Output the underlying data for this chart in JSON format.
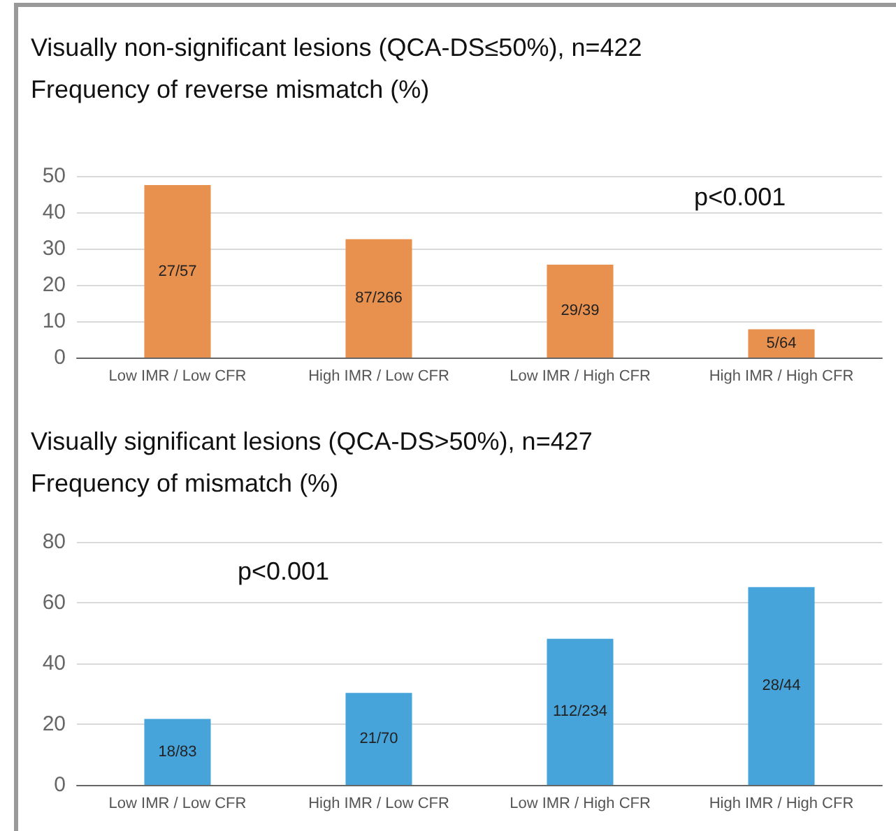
{
  "chart_data": [
    {
      "type": "bar",
      "title": "Visually non-significant lesions (QCA-DS≤50%), n=422",
      "subtitle": "Frequency of reverse mismatch (%)",
      "categories": [
        "Low IMR / Low CFR",
        "High IMR / Low CFR",
        "Low IMR / High CFR",
        "High IMR / High CFR"
      ],
      "values": [
        47.5,
        32.6,
        25.6,
        7.8
      ],
      "value_labels": [
        "27/57",
        "87/266",
        "29/39",
        "5/64"
      ],
      "color": "#e8914e",
      "ylim": [
        0,
        50
      ],
      "yticks": [
        0,
        10,
        20,
        30,
        40,
        50
      ],
      "grid": "y",
      "annotations": [
        "p<0.001"
      ]
    },
    {
      "type": "bar",
      "title": "Visually significant lesions (QCA-DS>50%), n=427",
      "subtitle": "Frequency of mismatch (%)",
      "categories": [
        "Low IMR / Low CFR",
        "High IMR / Low CFR",
        "Low IMR / High CFR",
        "High IMR / High CFR"
      ],
      "values": [
        21.7,
        30.3,
        48.1,
        65.1
      ],
      "value_labels": [
        "18/83",
        "21/70",
        "112/234",
        "28/44"
      ],
      "color": "#46a4db",
      "ylim": [
        0,
        80
      ],
      "yticks": [
        0,
        20,
        40,
        60,
        80
      ],
      "grid": "y",
      "annotations": [
        "p<0.001"
      ]
    }
  ]
}
